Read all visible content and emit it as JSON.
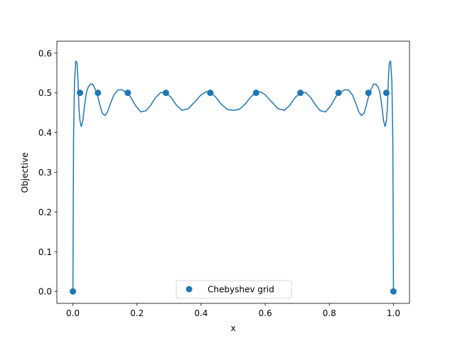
{
  "chart_data": {
    "type": "line",
    "title": "",
    "xlabel": "x",
    "ylabel": "Objective",
    "xlim": [
      -0.05,
      1.05
    ],
    "ylim": [
      -0.03,
      0.63
    ],
    "xticks": [
      0.0,
      0.2,
      0.4,
      0.6,
      0.8,
      1.0
    ],
    "xtick_labels": [
      "0.0",
      "0.2",
      "0.4",
      "0.6",
      "0.8",
      "1.0"
    ],
    "yticks": [
      0.0,
      0.1,
      0.2,
      0.3,
      0.4,
      0.5,
      0.6
    ],
    "ytick_labels": [
      "0.0",
      "0.1",
      "0.2",
      "0.3",
      "0.4",
      "0.5",
      "0.6"
    ],
    "grid": false,
    "legend": {
      "placement": "lower center",
      "entries": [
        "Chebyshev grid"
      ]
    },
    "colors": {
      "series": "#1f77b4"
    },
    "series": [
      {
        "kind": "line",
        "x": [
          0.0,
          0.002,
          0.005,
          0.009,
          0.013,
          0.016,
          0.019,
          0.022,
          0.026,
          0.031,
          0.036,
          0.042,
          0.048,
          0.055,
          0.062,
          0.068,
          0.074,
          0.078,
          0.084,
          0.092,
          0.1,
          0.108,
          0.118,
          0.128,
          0.14,
          0.152,
          0.162,
          0.172,
          0.182,
          0.196,
          0.212,
          0.228,
          0.242,
          0.258,
          0.274,
          0.29,
          0.306,
          0.322,
          0.34,
          0.36,
          0.38,
          0.4,
          0.416,
          0.43,
          0.445,
          0.462,
          0.482,
          0.5,
          0.518,
          0.538,
          0.555,
          0.57,
          0.584,
          0.6,
          0.62,
          0.64,
          0.66,
          0.678,
          0.694,
          0.71,
          0.726,
          0.742,
          0.758,
          0.772,
          0.788,
          0.804,
          0.818,
          0.828,
          0.838,
          0.848,
          0.86,
          0.872,
          0.882,
          0.892,
          0.9,
          0.908,
          0.916,
          0.922,
          0.926,
          0.932,
          0.938,
          0.945,
          0.952,
          0.958,
          0.964,
          0.969,
          0.974,
          0.978,
          0.981,
          0.984,
          0.987,
          0.991,
          0.995,
          0.998,
          1.0
        ],
        "y": [
          0.0,
          0.38,
          0.53,
          0.58,
          0.575,
          0.53,
          0.46,
          0.43,
          0.415,
          0.43,
          0.465,
          0.5,
          0.515,
          0.522,
          0.522,
          0.512,
          0.5,
          0.49,
          0.47,
          0.448,
          0.443,
          0.452,
          0.475,
          0.495,
          0.507,
          0.508,
          0.503,
          0.5,
          0.487,
          0.467,
          0.452,
          0.455,
          0.468,
          0.488,
          0.501,
          0.5,
          0.489,
          0.47,
          0.456,
          0.46,
          0.477,
          0.495,
          0.503,
          0.5,
          0.49,
          0.472,
          0.458,
          0.456,
          0.458,
          0.472,
          0.49,
          0.5,
          0.503,
          0.495,
          0.477,
          0.46,
          0.456,
          0.47,
          0.489,
          0.5,
          0.501,
          0.488,
          0.468,
          0.455,
          0.452,
          0.467,
          0.487,
          0.5,
          0.503,
          0.508,
          0.507,
          0.495,
          0.475,
          0.452,
          0.443,
          0.448,
          0.47,
          0.49,
          0.5,
          0.512,
          0.522,
          0.522,
          0.515,
          0.5,
          0.465,
          0.43,
          0.415,
          0.43,
          0.46,
          0.53,
          0.575,
          0.58,
          0.53,
          0.38,
          0.0
        ]
      },
      {
        "kind": "scatter",
        "name": "Chebyshev grid",
        "x": [
          0.0,
          0.0222,
          0.0781,
          0.1713,
          0.2902,
          0.4285,
          0.5715,
          0.7098,
          0.8287,
          0.9219,
          0.9778,
          1.0
        ],
        "y": [
          0.0,
          0.5,
          0.5,
          0.5,
          0.5,
          0.5,
          0.5,
          0.5,
          0.5,
          0.5,
          0.5,
          0.0
        ]
      }
    ]
  }
}
